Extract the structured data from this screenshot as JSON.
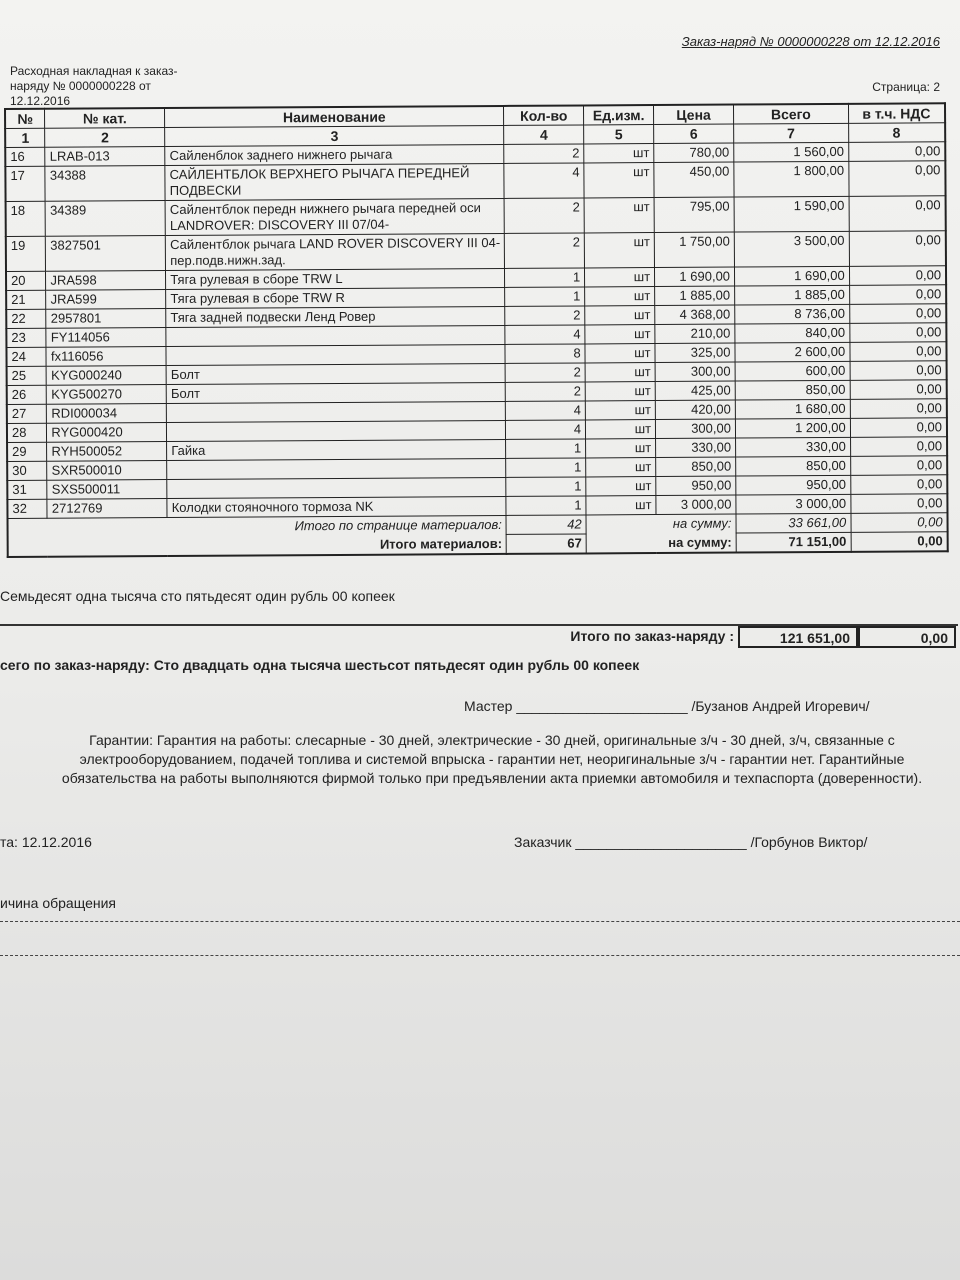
{
  "header": {
    "order_title": "Заказ-наряд № 0000000228 от 12.12.2016",
    "waybill": "Расходная накладная к заказ-наряду № 0000000228 от 12.12.2016",
    "page": "Страница: 2"
  },
  "columns": [
    "№",
    "№ кат.",
    "Наименование",
    "Кол-во",
    "Ед.изм.",
    "Цена",
    "Всего",
    "в т.ч. НДС"
  ],
  "column_numbers": [
    "1",
    "2",
    "3",
    "4",
    "5",
    "6",
    "7",
    "8"
  ],
  "rows": [
    [
      "16",
      "LRAB-013",
      "Сайленблок заднего нижнего рычага",
      "2",
      "шт",
      "780,00",
      "1 560,00",
      "0,00"
    ],
    [
      "17",
      "34388",
      "САЙЛЕНТБЛОК ВЕРХНЕГО РЫЧАГА ПЕРЕДНЕЙ ПОДВЕСКИ",
      "4",
      "шт",
      "450,00",
      "1 800,00",
      "0,00"
    ],
    [
      "18",
      "34389",
      "Сайлентблок передн нижнего рычага передней оси LANDROVER: DISCOVERY III 07/04-",
      "2",
      "шт",
      "795,00",
      "1 590,00",
      "0,00"
    ],
    [
      "19",
      "3827501",
      "Сайлентблок рычага LAND ROVER DISCOVERY III 04- пер.подв.нижн.зад.",
      "2",
      "шт",
      "1 750,00",
      "3 500,00",
      "0,00"
    ],
    [
      "20",
      "JRA598",
      "Тяга рулевая в сборе TRW L",
      "1",
      "шт",
      "1 690,00",
      "1 690,00",
      "0,00"
    ],
    [
      "21",
      "JRA599",
      "Тяга рулевая в сборе TRW R",
      "1",
      "шт",
      "1 885,00",
      "1 885,00",
      "0,00"
    ],
    [
      "22",
      "2957801",
      "Тяга задней подвески Ленд Ровер",
      "2",
      "шт",
      "4 368,00",
      "8 736,00",
      "0,00"
    ],
    [
      "23",
      "FY114056",
      "",
      "4",
      "шт",
      "210,00",
      "840,00",
      "0,00"
    ],
    [
      "24",
      "fx116056",
      "",
      "8",
      "шт",
      "325,00",
      "2 600,00",
      "0,00"
    ],
    [
      "25",
      "KYG000240",
      "Болт",
      "2",
      "шт",
      "300,00",
      "600,00",
      "0,00"
    ],
    [
      "26",
      "KYG500270",
      "Болт",
      "2",
      "шт",
      "425,00",
      "850,00",
      "0,00"
    ],
    [
      "27",
      "RDI000034",
      "",
      "4",
      "шт",
      "420,00",
      "1 680,00",
      "0,00"
    ],
    [
      "28",
      "RYG000420",
      "",
      "4",
      "шт",
      "300,00",
      "1 200,00",
      "0,00"
    ],
    [
      "29",
      "RYH500052",
      "Гайка",
      "1",
      "шт",
      "330,00",
      "330,00",
      "0,00"
    ],
    [
      "30",
      "SXR500010",
      "",
      "1",
      "шт",
      "850,00",
      "850,00",
      "0,00"
    ],
    [
      "31",
      "SXS500011",
      "",
      "1",
      "шт",
      "950,00",
      "950,00",
      "0,00"
    ],
    [
      "32",
      "2712769",
      "Колодки стояночного тормоза NK",
      "1",
      "шт",
      "3 000,00",
      "3 000,00",
      "0,00"
    ]
  ],
  "page_total": {
    "label": "Итого по странице материалов:",
    "qty": "42",
    "sum_label": "на сумму:",
    "sum": "33 661,00",
    "vat": "0,00"
  },
  "materials_total": {
    "label": "Итого материалов:",
    "qty": "67",
    "sum_label": "на сумму:",
    "sum": "71 151,00",
    "vat": "0,00"
  },
  "materials_words": "Семьдесят одна тысяча сто пятьдесят один рубль 00 копеек",
  "grand_total": {
    "label": "Итого по заказ-наряду :",
    "sum": "121 651,00",
    "vat": "0,00"
  },
  "grand_words": "сего по заказ-наряду: Сто двадцать одна тысяча шестьсот пятьдесят один рубль 00 копеек",
  "master": "Мастер ______________________ /Бузанов Андрей Игоревич/",
  "warranty": "Гарантии: Гарантия на работы: слесарные - 30 дней, электрические - 30 дней, оригинальные з/ч - 30 дней, з/ч, связанные с электрооборудованием, подачей топлива и системой впрыска - гарантии нет, неоригинальные з/ч - гарантии нет. Гарантийные обязательства на работы выполняются фирмой только при предъявлении акта приемки автомобиля и техпаспорта (доверенности).",
  "date": "та: 12.12.2016",
  "customer": "Заказчик ______________________ /Горбунов Виктор/",
  "reason": "ичина обращения"
}
